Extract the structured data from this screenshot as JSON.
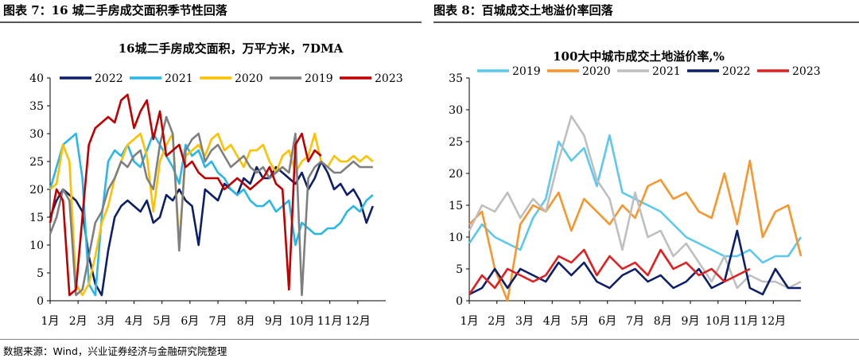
{
  "header_left": "图表 7：16 城二手房成交面积季节性回落",
  "header_right": "图表 8：百城成交土地溢价率回落",
  "source": "数据来源：Wind，兴业证券经济与金融研究院整理",
  "chart_data": [
    {
      "type": "line",
      "title": "16城二手房成交面积，万平方米，7DMA",
      "x_tick_labels": [
        "1月",
        "2月",
        "3月",
        "4月",
        "5月",
        "6月",
        "7月",
        "8月",
        "9月",
        "10月",
        "11月",
        "12月"
      ],
      "xlim": [
        0,
        52
      ],
      "ylim": [
        0,
        40
      ],
      "y_ticks": [
        0,
        5,
        10,
        15,
        20,
        25,
        30,
        35,
        40
      ],
      "legend_position": "top",
      "series": [
        {
          "name": "2022",
          "color": "#0d1f6b",
          "x": [
            0,
            1,
            2,
            3,
            4,
            5,
            6,
            7,
            8,
            9,
            10,
            11,
            12,
            13,
            14,
            15,
            16,
            17,
            18,
            19,
            20,
            21,
            22,
            23,
            24,
            25,
            26,
            27,
            28,
            29,
            30,
            31,
            32,
            33,
            34,
            35,
            36,
            37,
            38,
            39,
            40,
            41,
            42,
            43,
            44,
            45,
            46,
            47,
            48,
            49,
            50
          ],
          "y": [
            15,
            18,
            20,
            19,
            18,
            16,
            8,
            3,
            1,
            9,
            15,
            17,
            18,
            17,
            16,
            18,
            14,
            15,
            19,
            18,
            20,
            18,
            17,
            10,
            20,
            19,
            18,
            21,
            20,
            19,
            22,
            21,
            24,
            22,
            22,
            24,
            23,
            22,
            21,
            23,
            20,
            22,
            25,
            23,
            20,
            21,
            19,
            20,
            18,
            14,
            17
          ]
        },
        {
          "name": "2021",
          "color": "#29b6e8",
          "x": [
            0,
            1,
            2,
            3,
            4,
            5,
            6,
            7,
            8,
            9,
            10,
            11,
            12,
            13,
            14,
            15,
            16,
            17,
            18,
            19,
            20,
            21,
            22,
            23,
            24,
            25,
            26,
            27,
            28,
            29,
            30,
            31,
            32,
            33,
            34,
            35,
            36,
            37,
            38,
            39,
            40,
            41,
            42,
            43,
            44,
            45,
            46,
            47,
            48,
            49,
            50
          ],
          "y": [
            20,
            24,
            28,
            29,
            30,
            22,
            3,
            1,
            15,
            25,
            27,
            26,
            28,
            25,
            24,
            27,
            30,
            28,
            26,
            24,
            21,
            28,
            26,
            27,
            24,
            25,
            23,
            22,
            20,
            19,
            20,
            18,
            17,
            17,
            18,
            16,
            17,
            18,
            10,
            14,
            13,
            12,
            12,
            13,
            13,
            14,
            16,
            17,
            16,
            18,
            19
          ]
        },
        {
          "name": "2020",
          "color": "#ffc000",
          "x": [
            0,
            1,
            2,
            3,
            4,
            5,
            6,
            7,
            8,
            9,
            10,
            11,
            12,
            13,
            14,
            15,
            16,
            17,
            18,
            19,
            20,
            21,
            22,
            23,
            24,
            25,
            26,
            27,
            28,
            29,
            30,
            31,
            32,
            33,
            34,
            35,
            36,
            37,
            38,
            39,
            40,
            41,
            42,
            43,
            44,
            45,
            46,
            47,
            48,
            49,
            50
          ],
          "y": [
            20,
            21,
            28,
            25,
            3,
            1,
            3,
            8,
            14,
            17,
            22,
            25,
            28,
            29,
            30,
            26,
            16,
            25,
            28,
            30,
            10,
            26,
            27,
            28,
            26,
            29,
            30,
            27,
            28,
            26,
            24,
            27,
            27,
            28,
            25,
            23,
            26,
            27,
            23,
            25,
            26,
            30,
            25,
            24,
            26,
            25,
            25,
            26,
            25,
            26,
            25
          ]
        },
        {
          "name": "2019",
          "color": "#7f7f7f",
          "x": [
            0,
            1,
            2,
            3,
            4,
            5,
            6,
            7,
            8,
            9,
            10,
            11,
            12,
            13,
            14,
            15,
            16,
            17,
            18,
            19,
            20,
            21,
            22,
            23,
            24,
            25,
            26,
            27,
            28,
            29,
            30,
            31,
            32,
            33,
            34,
            35,
            36,
            37,
            38,
            39,
            40,
            41,
            42,
            43,
            44,
            45,
            46,
            47,
            48,
            49,
            50
          ],
          "y": [
            12,
            15,
            20,
            18,
            1,
            2,
            8,
            14,
            16,
            20,
            22,
            25,
            24,
            26,
            27,
            22,
            20,
            28,
            33,
            30,
            9,
            27,
            29,
            30,
            25,
            27,
            28,
            26,
            24,
            25,
            26,
            24,
            23,
            24,
            22,
            23,
            24,
            23,
            30,
            1,
            22,
            24,
            25,
            24,
            23,
            23,
            24,
            25,
            24,
            24,
            24
          ]
        },
        {
          "name": "2023",
          "color": "#c00000",
          "x": [
            0,
            1,
            2,
            3,
            4,
            5,
            6,
            7,
            8,
            9,
            10,
            11,
            12,
            13,
            14,
            15,
            16,
            17,
            18,
            19,
            20,
            21,
            22,
            23,
            24,
            25,
            26,
            27,
            28,
            29,
            30,
            31,
            32,
            33,
            34,
            35,
            36,
            37,
            38,
            39,
            40,
            41,
            42
          ],
          "y": [
            14,
            20,
            18,
            1,
            2,
            15,
            28,
            31,
            32,
            33,
            32,
            36,
            37,
            31,
            34,
            36,
            29,
            34,
            26,
            27,
            28,
            24,
            25,
            23,
            22,
            22,
            22,
            20,
            21,
            22,
            21,
            20,
            21,
            22,
            24,
            21,
            20,
            2,
            28,
            30,
            25,
            27,
            26
          ]
        }
      ]
    },
    {
      "type": "line",
      "title": "100大中城市成交土地溢价率,%",
      "x_tick_labels": [
        "1月",
        "2月",
        "3月",
        "4月",
        "5月",
        "6月",
        "7月",
        "8月",
        "9月",
        "10月",
        "11月",
        "12月"
      ],
      "xlim": [
        0,
        52
      ],
      "ylim": [
        0,
        35
      ],
      "y_ticks": [
        0,
        5,
        10,
        15,
        20,
        25,
        30,
        35
      ],
      "legend_position": "top",
      "series": [
        {
          "name": "2019",
          "color": "#5bc8ee",
          "x": [
            0,
            2,
            4,
            6,
            8,
            10,
            12,
            14,
            16,
            18,
            20,
            22,
            24,
            26,
            28,
            30,
            32,
            34,
            36,
            38,
            40,
            42,
            44,
            46,
            48,
            50,
            52
          ],
          "y": [
            9,
            12,
            10,
            9,
            8,
            13,
            16,
            25,
            22,
            24,
            18,
            26,
            17,
            16,
            15,
            14,
            12,
            10,
            9,
            8,
            7,
            7,
            8,
            6,
            7,
            7,
            10
          ]
        },
        {
          "name": "2020",
          "color": "#f7962d",
          "x": [
            0,
            2,
            4,
            6,
            8,
            10,
            12,
            14,
            16,
            18,
            20,
            22,
            24,
            26,
            28,
            30,
            32,
            34,
            36,
            38,
            40,
            42,
            44,
            46,
            48,
            50,
            52
          ],
          "y": [
            12,
            14,
            5,
            0,
            12,
            15,
            14,
            17,
            11,
            16,
            14,
            12,
            15,
            13,
            18,
            19,
            16,
            17,
            14,
            13,
            20,
            12,
            22,
            10,
            14,
            15,
            7
          ]
        },
        {
          "name": "2021",
          "color": "#bfbfbf",
          "x": [
            0,
            2,
            4,
            6,
            8,
            10,
            12,
            14,
            16,
            18,
            20,
            22,
            24,
            26,
            28,
            30,
            32,
            34,
            36,
            38,
            40,
            42,
            44,
            46,
            48,
            50,
            52
          ],
          "y": [
            11,
            15,
            14,
            17,
            13,
            16,
            14,
            22,
            29,
            26,
            19,
            16,
            8,
            17,
            10,
            11,
            7,
            9,
            6,
            3,
            7,
            2,
            4,
            3,
            3,
            2,
            3
          ]
        },
        {
          "name": "2022",
          "color": "#0d1f6b",
          "x": [
            0,
            2,
            4,
            6,
            8,
            10,
            12,
            14,
            16,
            18,
            20,
            22,
            24,
            26,
            28,
            30,
            32,
            34,
            36,
            38,
            40,
            42,
            44,
            46,
            48,
            50,
            52
          ],
          "y": [
            1,
            2,
            5,
            2,
            5,
            4,
            3,
            6,
            4,
            6,
            3,
            2,
            4,
            5,
            3,
            4,
            2,
            3,
            5,
            2,
            3,
            11,
            2,
            1,
            5,
            2,
            2
          ]
        },
        {
          "name": "2023",
          "color": "#e02020",
          "x": [
            0,
            2,
            4,
            6,
            8,
            10,
            12,
            14,
            16,
            18,
            20,
            22,
            24,
            26,
            28,
            30,
            32,
            34,
            36,
            38,
            40,
            42,
            44
          ],
          "y": [
            1,
            4,
            2,
            5,
            4,
            3,
            4,
            7,
            6,
            8,
            4,
            7,
            5,
            6,
            4,
            8,
            5,
            6,
            4,
            5,
            3,
            4,
            5
          ]
        }
      ]
    }
  ]
}
